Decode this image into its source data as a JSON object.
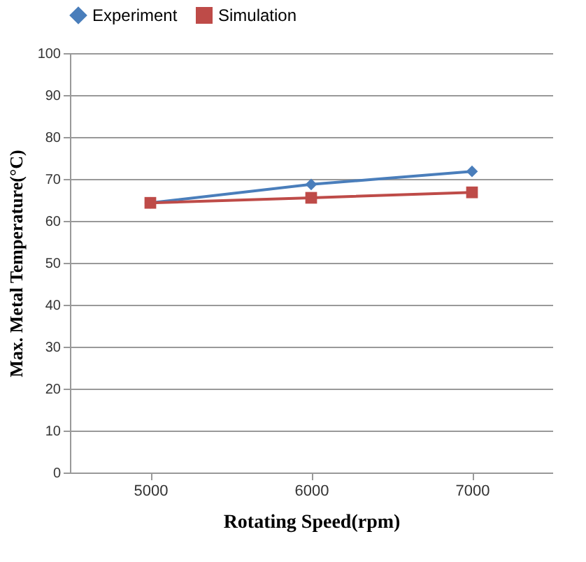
{
  "chart_data": {
    "type": "line",
    "xlabel": "Rotating Speed(rpm)",
    "ylabel": "Max. Metal Temperature(°C)",
    "categories": [
      "5000",
      "6000",
      "7000"
    ],
    "series": [
      {
        "name": "Experiment",
        "color": "#4a7ebb",
        "marker": "diamond",
        "values": [
          64.3,
          68.7,
          71.8
        ]
      },
      {
        "name": "Simulation",
        "color": "#be4b48",
        "marker": "square",
        "values": [
          64.3,
          65.5,
          66.8
        ]
      }
    ],
    "ylim": [
      0,
      100
    ],
    "yticks": [
      0,
      10,
      20,
      30,
      40,
      50,
      60,
      70,
      80,
      90,
      100
    ],
    "grid": "y",
    "legend": "top",
    "line_style": "solid"
  }
}
